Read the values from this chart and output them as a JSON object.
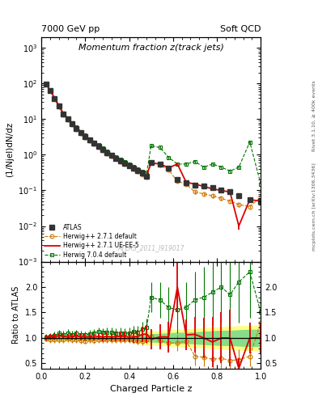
{
  "title_left": "7000 GeV pp",
  "title_right": "Soft QCD",
  "plot_title": "Momentum fraction z(track jets)",
  "xlabel": "Charged Particle z",
  "ylabel_main": "(1/Njel)dN/dz",
  "ylabel_ratio": "Ratio to ATLAS",
  "watermark": "ATLAS_2011_I919017",
  "right_label_top": "Rivet 3.1.10, ≥ 400k events",
  "right_label_bottom": "mcplots.cern.ch [arXiv:1306.3436]",
  "xlim": [
    0,
    1.0
  ],
  "ylim_main": [
    0.001,
    2000.0
  ],
  "ylim_ratio": [
    0.4,
    2.5
  ],
  "atlas_x": [
    0.02,
    0.04,
    0.06,
    0.08,
    0.1,
    0.12,
    0.14,
    0.16,
    0.18,
    0.2,
    0.22,
    0.24,
    0.26,
    0.28,
    0.3,
    0.32,
    0.34,
    0.36,
    0.38,
    0.4,
    0.42,
    0.44,
    0.46,
    0.48,
    0.5,
    0.54,
    0.58,
    0.62,
    0.66,
    0.7,
    0.74,
    0.78,
    0.82,
    0.86,
    0.9,
    0.95,
    1.0
  ],
  "atlas_y": [
    96,
    65,
    38,
    23,
    14,
    10,
    7.5,
    5.5,
    4.2,
    3.3,
    2.6,
    2.1,
    1.7,
    1.4,
    1.15,
    0.95,
    0.8,
    0.68,
    0.58,
    0.5,
    0.42,
    0.36,
    0.3,
    0.25,
    0.6,
    0.55,
    0.42,
    0.2,
    0.16,
    0.14,
    0.13,
    0.12,
    0.1,
    0.09,
    0.07,
    0.055,
    0.05
  ],
  "atlas_yerr": [
    5,
    4,
    2.5,
    1.5,
    0.9,
    0.6,
    0.45,
    0.35,
    0.25,
    0.2,
    0.16,
    0.13,
    0.1,
    0.08,
    0.07,
    0.06,
    0.05,
    0.04,
    0.035,
    0.03,
    0.025,
    0.02,
    0.018,
    0.015,
    0.06,
    0.05,
    0.04,
    0.02,
    0.015,
    0.013,
    0.012,
    0.011,
    0.01,
    0.009,
    0.008,
    0.007,
    0.006
  ],
  "hw271_x": [
    0.02,
    0.04,
    0.06,
    0.08,
    0.1,
    0.12,
    0.14,
    0.16,
    0.18,
    0.2,
    0.22,
    0.24,
    0.26,
    0.28,
    0.3,
    0.32,
    0.34,
    0.36,
    0.38,
    0.4,
    0.42,
    0.44,
    0.46,
    0.48,
    0.5,
    0.54,
    0.58,
    0.62,
    0.66,
    0.7,
    0.74,
    0.78,
    0.82,
    0.86,
    0.9,
    0.95,
    1.0
  ],
  "hw271_y": [
    95,
    63,
    37,
    22,
    13.5,
    9.8,
    7.2,
    5.3,
    4.0,
    3.1,
    2.5,
    2.0,
    1.65,
    1.35,
    1.1,
    0.92,
    0.77,
    0.65,
    0.56,
    0.48,
    0.4,
    0.34,
    0.28,
    0.24,
    0.62,
    0.52,
    0.38,
    0.18,
    0.15,
    0.09,
    0.08,
    0.07,
    0.06,
    0.05,
    0.04,
    0.035,
    0.065
  ],
  "hw271_yerr": [
    5,
    3.5,
    2,
    1.2,
    0.8,
    0.55,
    0.4,
    0.3,
    0.22,
    0.17,
    0.14,
    0.11,
    0.09,
    0.075,
    0.065,
    0.055,
    0.045,
    0.038,
    0.032,
    0.028,
    0.023,
    0.019,
    0.016,
    0.013,
    0.055,
    0.045,
    0.035,
    0.018,
    0.014,
    0.01,
    0.009,
    0.008,
    0.007,
    0.006,
    0.005,
    0.004,
    0.007
  ],
  "hw271ue_x": [
    0.02,
    0.04,
    0.06,
    0.08,
    0.1,
    0.12,
    0.14,
    0.16,
    0.18,
    0.2,
    0.22,
    0.24,
    0.26,
    0.28,
    0.3,
    0.32,
    0.34,
    0.36,
    0.38,
    0.4,
    0.42,
    0.44,
    0.46,
    0.48,
    0.5,
    0.54,
    0.58,
    0.62,
    0.66,
    0.7,
    0.74,
    0.78,
    0.82,
    0.86,
    0.9,
    0.95,
    1.0
  ],
  "hw271ue_y": [
    97,
    66,
    39,
    24,
    14.5,
    10.2,
    7.7,
    5.7,
    4.3,
    3.35,
    2.65,
    2.15,
    1.75,
    1.43,
    1.18,
    0.97,
    0.82,
    0.7,
    0.6,
    0.51,
    0.43,
    0.37,
    0.32,
    0.27,
    0.58,
    0.56,
    0.43,
    0.55,
    0.17,
    0.15,
    0.13,
    0.11,
    0.1,
    0.09,
    0.01,
    0.055,
    0.05
  ],
  "hw271ue_yerr": [
    5,
    3.8,
    2.2,
    1.4,
    0.85,
    0.6,
    0.45,
    0.33,
    0.25,
    0.19,
    0.15,
    0.12,
    0.1,
    0.08,
    0.07,
    0.058,
    0.048,
    0.04,
    0.035,
    0.03,
    0.025,
    0.021,
    0.018,
    0.015,
    0.055,
    0.05,
    0.038,
    0.05,
    0.015,
    0.013,
    0.011,
    0.009,
    0.008,
    0.007,
    0.002,
    0.005,
    0.005
  ],
  "hw704_x": [
    0.02,
    0.04,
    0.06,
    0.08,
    0.1,
    0.12,
    0.14,
    0.16,
    0.18,
    0.2,
    0.22,
    0.24,
    0.26,
    0.28,
    0.3,
    0.32,
    0.34,
    0.36,
    0.38,
    0.4,
    0.42,
    0.44,
    0.46,
    0.48,
    0.5,
    0.54,
    0.58,
    0.62,
    0.66,
    0.7,
    0.74,
    0.78,
    0.82,
    0.86,
    0.9,
    0.95,
    1.0
  ],
  "hw704_y": [
    98,
    67,
    40,
    25,
    15,
    11,
    8.0,
    6.0,
    4.5,
    3.5,
    2.8,
    2.3,
    1.9,
    1.55,
    1.28,
    1.05,
    0.88,
    0.75,
    0.63,
    0.55,
    0.47,
    0.4,
    0.35,
    0.3,
    1.8,
    1.6,
    0.85,
    0.55,
    0.55,
    0.65,
    0.45,
    0.55,
    0.45,
    0.35,
    0.45,
    2.3,
    0.15
  ],
  "hw704_yerr": [
    5,
    4,
    2.5,
    1.5,
    0.9,
    0.65,
    0.48,
    0.36,
    0.27,
    0.21,
    0.17,
    0.14,
    0.11,
    0.09,
    0.075,
    0.063,
    0.052,
    0.044,
    0.037,
    0.032,
    0.028,
    0.024,
    0.021,
    0.018,
    0.2,
    0.18,
    0.09,
    0.06,
    0.06,
    0.07,
    0.05,
    0.06,
    0.05,
    0.04,
    0.05,
    0.25,
    0.015
  ],
  "atlas_color": "#333333",
  "hw271_color": "#cc7700",
  "hw271ue_color": "#dd0000",
  "hw704_color": "#007700",
  "legend_labels": [
    "ATLAS",
    "Herwig++ 2.7.1 default",
    "Herwig++ 2.7.1 UE-EE-5",
    "Herwig 7.0.4 default"
  ],
  "ratio_hw271_y": [
    0.99,
    0.97,
    0.97,
    0.96,
    0.96,
    0.98,
    0.96,
    0.96,
    0.95,
    0.94,
    0.96,
    0.95,
    0.97,
    0.96,
    0.96,
    0.97,
    0.96,
    0.96,
    0.97,
    0.96,
    0.95,
    0.94,
    0.93,
    0.96,
    1.03,
    0.95,
    0.9,
    0.9,
    0.94,
    0.64,
    0.62,
    0.58,
    0.6,
    0.56,
    0.57,
    0.64,
    1.3
  ],
  "ratio_hw271_yerr": [
    0.06,
    0.06,
    0.06,
    0.06,
    0.06,
    0.06,
    0.06,
    0.06,
    0.06,
    0.06,
    0.06,
    0.06,
    0.06,
    0.06,
    0.06,
    0.06,
    0.06,
    0.06,
    0.06,
    0.06,
    0.07,
    0.07,
    0.08,
    0.08,
    0.12,
    0.12,
    0.14,
    0.16,
    0.16,
    0.18,
    0.18,
    0.2,
    0.2,
    0.2,
    0.2,
    0.2,
    0.25
  ],
  "ratio_hw271ue_y": [
    1.01,
    1.02,
    1.03,
    1.04,
    1.04,
    1.02,
    1.03,
    1.04,
    1.02,
    1.02,
    1.02,
    1.02,
    1.03,
    1.02,
    1.03,
    1.02,
    1.03,
    1.03,
    1.03,
    1.02,
    1.02,
    1.03,
    1.07,
    1.08,
    0.97,
    1.02,
    1.02,
    2.0,
    1.06,
    1.07,
    1.0,
    0.92,
    1.0,
    1.0,
    0.14,
    1.0,
    1.0
  ],
  "ratio_hw271ue_yerr": [
    0.06,
    0.06,
    0.06,
    0.06,
    0.06,
    0.06,
    0.07,
    0.07,
    0.07,
    0.07,
    0.07,
    0.07,
    0.07,
    0.08,
    0.08,
    0.08,
    0.09,
    0.09,
    0.1,
    0.1,
    0.12,
    0.13,
    0.15,
    0.17,
    0.2,
    0.25,
    0.3,
    0.5,
    0.3,
    0.35,
    0.4,
    0.5,
    0.5,
    0.55,
    0.2,
    0.3,
    0.3
  ],
  "ratio_hw704_y": [
    1.02,
    1.03,
    1.05,
    1.09,
    1.07,
    1.1,
    1.07,
    1.09,
    1.07,
    1.06,
    1.08,
    1.1,
    1.12,
    1.11,
    1.11,
    1.11,
    1.1,
    1.1,
    1.09,
    1.1,
    1.12,
    1.11,
    1.17,
    1.2,
    1.8,
    1.75,
    1.6,
    1.55,
    1.6,
    1.75,
    1.8,
    1.9,
    2.0,
    1.85,
    2.1,
    2.3,
    1.5
  ],
  "ratio_hw704_yerr": [
    0.06,
    0.06,
    0.07,
    0.07,
    0.07,
    0.07,
    0.07,
    0.07,
    0.07,
    0.07,
    0.08,
    0.08,
    0.08,
    0.08,
    0.09,
    0.09,
    0.09,
    0.1,
    0.1,
    0.1,
    0.12,
    0.13,
    0.15,
    0.18,
    0.3,
    0.35,
    0.4,
    0.45,
    0.5,
    0.55,
    0.6,
    0.65,
    0.7,
    0.7,
    0.8,
    0.9,
    0.5
  ],
  "atlas_band_yellow_lo": [
    0.945,
    0.945,
    0.945,
    0.945,
    0.945,
    0.945,
    0.945,
    0.945,
    0.945,
    0.945,
    0.945,
    0.945,
    0.945,
    0.945,
    0.945,
    0.945,
    0.945,
    0.945,
    0.945,
    0.945,
    0.93,
    0.91,
    0.89,
    0.87,
    0.87,
    0.86,
    0.85,
    0.84,
    0.83,
    0.82,
    0.81,
    0.8,
    0.79,
    0.78,
    0.77,
    0.76,
    0.75
  ],
  "atlas_band_yellow_hi": [
    1.055,
    1.055,
    1.055,
    1.055,
    1.055,
    1.055,
    1.055,
    1.055,
    1.055,
    1.055,
    1.055,
    1.055,
    1.055,
    1.055,
    1.055,
    1.055,
    1.055,
    1.055,
    1.055,
    1.055,
    1.07,
    1.09,
    1.11,
    1.13,
    1.13,
    1.14,
    1.15,
    1.16,
    1.17,
    1.18,
    1.19,
    1.2,
    1.21,
    1.22,
    1.23,
    1.24,
    1.25
  ],
  "atlas_band_green_lo": [
    0.97,
    0.97,
    0.97,
    0.97,
    0.97,
    0.97,
    0.97,
    0.97,
    0.97,
    0.97,
    0.97,
    0.97,
    0.97,
    0.97,
    0.97,
    0.97,
    0.97,
    0.97,
    0.97,
    0.97,
    0.96,
    0.95,
    0.94,
    0.93,
    0.93,
    0.92,
    0.91,
    0.9,
    0.9,
    0.89,
    0.88,
    0.87,
    0.86,
    0.86,
    0.85,
    0.84,
    0.84
  ],
  "atlas_band_green_hi": [
    1.03,
    1.03,
    1.03,
    1.03,
    1.03,
    1.03,
    1.03,
    1.03,
    1.03,
    1.03,
    1.03,
    1.03,
    1.03,
    1.03,
    1.03,
    1.03,
    1.03,
    1.03,
    1.03,
    1.03,
    1.04,
    1.05,
    1.06,
    1.07,
    1.07,
    1.08,
    1.09,
    1.1,
    1.1,
    1.11,
    1.12,
    1.13,
    1.14,
    1.14,
    1.15,
    1.16,
    1.16
  ]
}
